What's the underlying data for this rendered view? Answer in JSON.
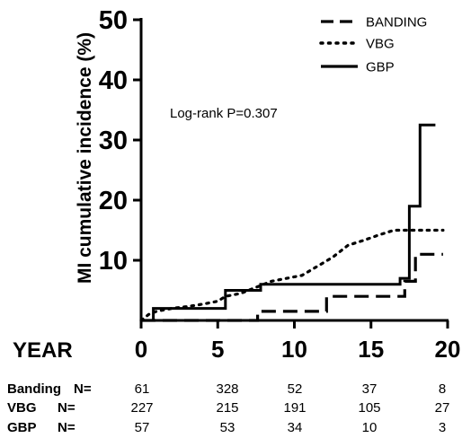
{
  "chart_data": {
    "type": "line",
    "subtype": "kaplan-meier-cumulative-incidence",
    "ylabel": "MI cumulative incidence (%)",
    "xlabel": "YEAR",
    "xlim": [
      0,
      20
    ],
    "ylim": [
      0,
      50
    ],
    "x_ticks": [
      0,
      5,
      10,
      15,
      20
    ],
    "y_ticks": [
      10,
      20,
      30,
      40,
      50
    ],
    "grid": false,
    "legend_position": "top-right",
    "annotation": "Log-rank P=0.307",
    "series": [
      {
        "name": "BANDING",
        "style": "dashed",
        "x": [
          0,
          7.6,
          7.6,
          12.1,
          12.1,
          17.2,
          17.2,
          17.9,
          17.9,
          19.7
        ],
        "y": [
          0,
          0,
          1.5,
          1.5,
          4,
          4,
          6.5,
          6.5,
          11,
          11
        ]
      },
      {
        "name": "VBG",
        "style": "dotted",
        "x": [
          0,
          0.5,
          1,
          2,
          3,
          4,
          5,
          5.5,
          6.5,
          7.5,
          8.5,
          9.5,
          10.5,
          11.5,
          12.5,
          13.5,
          14.5,
          15.5,
          16.5,
          17.5,
          19.7
        ],
        "y": [
          0,
          1,
          1.5,
          2,
          2.3,
          2.7,
          3.2,
          4,
          4.5,
          5.5,
          6.5,
          7,
          7.5,
          9,
          10.5,
          12.5,
          13.3,
          14.2,
          15,
          15,
          15
        ]
      },
      {
        "name": "GBP",
        "style": "solid",
        "x": [
          0,
          0.8,
          0.8,
          5.5,
          5.5,
          7.8,
          7.8,
          16.9,
          16.9,
          17.5,
          17.5,
          18.2,
          18.2,
          19.2
        ],
        "y": [
          0,
          0,
          2,
          2,
          5,
          5,
          6,
          6,
          7,
          7,
          19,
          19,
          32.5,
          32.5
        ]
      }
    ],
    "risk_table": {
      "times": [
        0,
        5,
        10,
        15,
        20
      ],
      "rows": [
        {
          "label": "Banding",
          "suffix": "N=",
          "values": [
            "61",
            "328",
            "52",
            "37",
            "8"
          ]
        },
        {
          "label": "VBG",
          "suffix": "N=",
          "values": [
            "227",
            "215",
            "191",
            "105",
            "27"
          ]
        },
        {
          "label": "GBP",
          "suffix": "N=",
          "values": [
            "57",
            "53",
            "34",
            "10",
            "3"
          ]
        }
      ]
    }
  }
}
